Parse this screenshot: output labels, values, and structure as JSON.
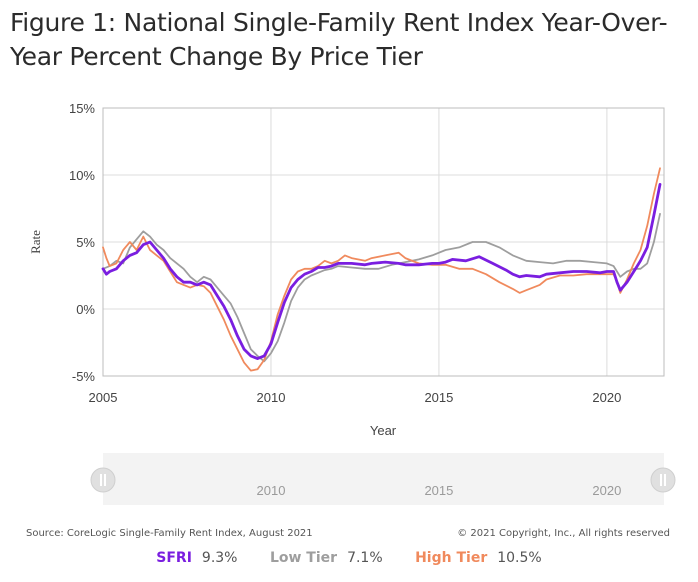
{
  "title": "Figure 1: National Single-Family Rent Index Year-Over-Year Percent Change By Price Tier",
  "source": "Source: CoreLogic Single-Family Rent Index, August 2021",
  "copyright": "© 2021 Copyright, Inc., All rights reserved",
  "navigator": {
    "labels": [
      "2010",
      "2015",
      "2020"
    ],
    "left_handle_icon": "pause-bars-icon",
    "right_handle_icon": "pause-bars-icon"
  },
  "legend": [
    {
      "name": "SFRI",
      "value": "9.3%",
      "color": "#7a1ee0"
    },
    {
      "name": "Low Tier",
      "value": "7.1%",
      "color": "#9e9e9e"
    },
    {
      "name": "High Tier",
      "value": "10.5%",
      "color": "#f08a5d"
    }
  ],
  "chart_data": {
    "type": "line",
    "xlabel": "Year",
    "ylabel": "Rate",
    "xlim": [
      2005,
      2021.7
    ],
    "ylim": [
      -5,
      15
    ],
    "x_ticks": [
      "2005",
      "2010",
      "2015",
      "2020"
    ],
    "y_ticks": [
      "-5%",
      "0%",
      "5%",
      "10%",
      "15%"
    ],
    "grid": "vertical at year ticks; horizontal at 0%, 5%, 10%",
    "series": [
      {
        "name": "SFRI",
        "color": "#7a1ee0",
        "points": [
          [
            2005.0,
            3.0
          ],
          [
            2005.1,
            2.6
          ],
          [
            2005.2,
            2.8
          ],
          [
            2005.4,
            3.0
          ],
          [
            2005.6,
            3.6
          ],
          [
            2005.8,
            4.0
          ],
          [
            2006.0,
            4.2
          ],
          [
            2006.2,
            4.8
          ],
          [
            2006.4,
            5.0
          ],
          [
            2006.6,
            4.4
          ],
          [
            2006.8,
            3.8
          ],
          [
            2007.0,
            3.0
          ],
          [
            2007.2,
            2.4
          ],
          [
            2007.4,
            2.0
          ],
          [
            2007.6,
            2.0
          ],
          [
            2007.8,
            1.8
          ],
          [
            2008.0,
            2.0
          ],
          [
            2008.2,
            1.8
          ],
          [
            2008.4,
            1.0
          ],
          [
            2008.6,
            0.2
          ],
          [
            2008.8,
            -0.8
          ],
          [
            2009.0,
            -2.0
          ],
          [
            2009.2,
            -3.0
          ],
          [
            2009.4,
            -3.5
          ],
          [
            2009.6,
            -3.7
          ],
          [
            2009.8,
            -3.5
          ],
          [
            2010.0,
            -2.6
          ],
          [
            2010.2,
            -1.0
          ],
          [
            2010.4,
            0.5
          ],
          [
            2010.6,
            1.6
          ],
          [
            2010.8,
            2.2
          ],
          [
            2011.0,
            2.6
          ],
          [
            2011.2,
            2.8
          ],
          [
            2011.4,
            3.1
          ],
          [
            2011.6,
            3.1
          ],
          [
            2011.8,
            3.2
          ],
          [
            2012.0,
            3.4
          ],
          [
            2012.4,
            3.4
          ],
          [
            2012.8,
            3.3
          ],
          [
            2013.0,
            3.4
          ],
          [
            2013.4,
            3.5
          ],
          [
            2013.8,
            3.4
          ],
          [
            2014.0,
            3.3
          ],
          [
            2014.4,
            3.3
          ],
          [
            2014.8,
            3.4
          ],
          [
            2015.0,
            3.4
          ],
          [
            2015.2,
            3.5
          ],
          [
            2015.4,
            3.7
          ],
          [
            2015.8,
            3.6
          ],
          [
            2016.2,
            3.9
          ],
          [
            2016.6,
            3.4
          ],
          [
            2017.0,
            2.9
          ],
          [
            2017.2,
            2.6
          ],
          [
            2017.4,
            2.4
          ],
          [
            2017.6,
            2.5
          ],
          [
            2018.0,
            2.4
          ],
          [
            2018.2,
            2.6
          ],
          [
            2018.6,
            2.7
          ],
          [
            2019.0,
            2.8
          ],
          [
            2019.4,
            2.8
          ],
          [
            2019.8,
            2.7
          ],
          [
            2020.0,
            2.8
          ],
          [
            2020.2,
            2.8
          ],
          [
            2020.3,
            2.0
          ],
          [
            2020.4,
            1.4
          ],
          [
            2020.6,
            2.0
          ],
          [
            2020.8,
            2.8
          ],
          [
            2021.0,
            3.6
          ],
          [
            2021.2,
            4.6
          ],
          [
            2021.4,
            7.0
          ],
          [
            2021.58,
            9.3
          ]
        ]
      },
      {
        "name": "Low Tier",
        "color": "#9e9e9e",
        "points": [
          [
            2005.0,
            3.0
          ],
          [
            2005.2,
            3.2
          ],
          [
            2005.4,
            3.6
          ],
          [
            2005.6,
            3.4
          ],
          [
            2005.8,
            4.6
          ],
          [
            2006.0,
            5.2
          ],
          [
            2006.2,
            5.8
          ],
          [
            2006.4,
            5.4
          ],
          [
            2006.6,
            4.8
          ],
          [
            2006.8,
            4.4
          ],
          [
            2007.0,
            3.8
          ],
          [
            2007.2,
            3.4
          ],
          [
            2007.4,
            3.0
          ],
          [
            2007.6,
            2.4
          ],
          [
            2007.8,
            2.0
          ],
          [
            2008.0,
            2.4
          ],
          [
            2008.2,
            2.2
          ],
          [
            2008.4,
            1.6
          ],
          [
            2008.6,
            1.0
          ],
          [
            2008.8,
            0.4
          ],
          [
            2009.0,
            -0.6
          ],
          [
            2009.2,
            -1.8
          ],
          [
            2009.4,
            -3.0
          ],
          [
            2009.6,
            -3.5
          ],
          [
            2009.8,
            -3.9
          ],
          [
            2010.0,
            -3.3
          ],
          [
            2010.2,
            -2.4
          ],
          [
            2010.4,
            -1.0
          ],
          [
            2010.6,
            0.6
          ],
          [
            2010.8,
            1.6
          ],
          [
            2011.0,
            2.2
          ],
          [
            2011.2,
            2.5
          ],
          [
            2011.4,
            2.7
          ],
          [
            2011.6,
            2.9
          ],
          [
            2011.8,
            3.0
          ],
          [
            2012.0,
            3.2
          ],
          [
            2012.4,
            3.1
          ],
          [
            2012.8,
            3.0
          ],
          [
            2013.2,
            3.0
          ],
          [
            2013.6,
            3.3
          ],
          [
            2014.0,
            3.5
          ],
          [
            2014.4,
            3.7
          ],
          [
            2014.8,
            4.0
          ],
          [
            2015.2,
            4.4
          ],
          [
            2015.6,
            4.6
          ],
          [
            2016.0,
            5.0
          ],
          [
            2016.4,
            5.0
          ],
          [
            2016.8,
            4.6
          ],
          [
            2017.2,
            4.0
          ],
          [
            2017.6,
            3.6
          ],
          [
            2018.0,
            3.5
          ],
          [
            2018.4,
            3.4
          ],
          [
            2018.8,
            3.6
          ],
          [
            2019.2,
            3.6
          ],
          [
            2019.6,
            3.5
          ],
          [
            2020.0,
            3.4
          ],
          [
            2020.2,
            3.2
          ],
          [
            2020.4,
            2.4
          ],
          [
            2020.6,
            2.8
          ],
          [
            2020.8,
            3.0
          ],
          [
            2021.0,
            3.0
          ],
          [
            2021.2,
            3.4
          ],
          [
            2021.4,
            5.0
          ],
          [
            2021.58,
            7.1
          ]
        ]
      },
      {
        "name": "High Tier",
        "color": "#f08a5d",
        "points": [
          [
            2005.0,
            4.6
          ],
          [
            2005.1,
            3.8
          ],
          [
            2005.2,
            3.2
          ],
          [
            2005.4,
            3.4
          ],
          [
            2005.6,
            4.4
          ],
          [
            2005.8,
            5.0
          ],
          [
            2006.0,
            4.4
          ],
          [
            2006.2,
            5.4
          ],
          [
            2006.4,
            4.4
          ],
          [
            2006.6,
            4.0
          ],
          [
            2006.8,
            3.6
          ],
          [
            2007.0,
            2.8
          ],
          [
            2007.2,
            2.0
          ],
          [
            2007.4,
            1.8
          ],
          [
            2007.6,
            1.6
          ],
          [
            2007.8,
            1.8
          ],
          [
            2008.0,
            1.7
          ],
          [
            2008.2,
            1.2
          ],
          [
            2008.4,
            0.2
          ],
          [
            2008.6,
            -0.8
          ],
          [
            2008.8,
            -2.0
          ],
          [
            2009.0,
            -3.0
          ],
          [
            2009.2,
            -4.0
          ],
          [
            2009.4,
            -4.6
          ],
          [
            2009.6,
            -4.5
          ],
          [
            2009.8,
            -3.8
          ],
          [
            2010.0,
            -2.4
          ],
          [
            2010.2,
            -0.4
          ],
          [
            2010.4,
            1.0
          ],
          [
            2010.6,
            2.2
          ],
          [
            2010.8,
            2.8
          ],
          [
            2011.0,
            3.0
          ],
          [
            2011.2,
            3.0
          ],
          [
            2011.4,
            3.2
          ],
          [
            2011.6,
            3.6
          ],
          [
            2011.8,
            3.4
          ],
          [
            2012.0,
            3.6
          ],
          [
            2012.2,
            4.0
          ],
          [
            2012.4,
            3.8
          ],
          [
            2012.8,
            3.6
          ],
          [
            2013.0,
            3.8
          ],
          [
            2013.4,
            4.0
          ],
          [
            2013.8,
            4.2
          ],
          [
            2014.0,
            3.8
          ],
          [
            2014.4,
            3.4
          ],
          [
            2014.8,
            3.3
          ],
          [
            2015.2,
            3.3
          ],
          [
            2015.6,
            3.0
          ],
          [
            2016.0,
            3.0
          ],
          [
            2016.4,
            2.6
          ],
          [
            2016.8,
            2.0
          ],
          [
            2017.2,
            1.5
          ],
          [
            2017.4,
            1.2
          ],
          [
            2017.6,
            1.4
          ],
          [
            2018.0,
            1.8
          ],
          [
            2018.2,
            2.2
          ],
          [
            2018.6,
            2.5
          ],
          [
            2019.0,
            2.5
          ],
          [
            2019.4,
            2.6
          ],
          [
            2019.8,
            2.6
          ],
          [
            2020.0,
            2.6
          ],
          [
            2020.2,
            2.6
          ],
          [
            2020.3,
            2.0
          ],
          [
            2020.4,
            1.2
          ],
          [
            2020.6,
            2.2
          ],
          [
            2020.8,
            3.4
          ],
          [
            2021.0,
            4.4
          ],
          [
            2021.2,
            6.2
          ],
          [
            2021.4,
            8.6
          ],
          [
            2021.58,
            10.5
          ]
        ]
      }
    ]
  }
}
